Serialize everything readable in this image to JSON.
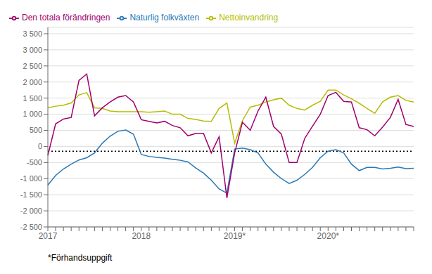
{
  "chart_data": {
    "type": "line",
    "note": "*Förhandsuppgift",
    "categories": [
      "2017",
      null,
      null,
      null,
      null,
      null,
      null,
      null,
      null,
      null,
      null,
      null,
      "2018",
      null,
      null,
      null,
      null,
      null,
      null,
      null,
      null,
      null,
      null,
      null,
      "2019*",
      null,
      null,
      null,
      null,
      null,
      null,
      null,
      null,
      null,
      null,
      null,
      "2020*",
      null,
      null,
      null,
      null,
      null,
      null,
      null,
      null,
      null,
      null,
      null
    ],
    "series": [
      {
        "name": "Naturlig folkväxten",
        "color": "#2878b5",
        "values": [
          -1200,
          -900,
          -700,
          -550,
          -420,
          -350,
          -200,
          100,
          320,
          470,
          510,
          380,
          -250,
          -310,
          -340,
          -360,
          -400,
          -430,
          -480,
          -670,
          -830,
          -1050,
          -1320,
          -1450,
          -80,
          -50,
          -100,
          -200,
          -550,
          -800,
          -1000,
          -1150,
          -1050,
          -870,
          -650,
          -350,
          -150,
          -100,
          -200,
          -550,
          -750,
          -650,
          -650,
          -700,
          -680,
          -640,
          -690,
          -680
        ]
      },
      {
        "name": "Nettoinvandring",
        "color": "#b5bd00",
        "values": [
          1200,
          1250,
          1280,
          1350,
          1600,
          1670,
          1200,
          1180,
          1100,
          1080,
          1080,
          1080,
          1080,
          1060,
          1080,
          1100,
          1000,
          1000,
          870,
          840,
          790,
          780,
          1180,
          1350,
          100,
          800,
          1220,
          1280,
          1380,
          1450,
          1500,
          1280,
          1180,
          1130,
          1280,
          1400,
          1750,
          1750,
          1600,
          1480,
          1340,
          1180,
          1030,
          1380,
          1530,
          1580,
          1430,
          1380
        ]
      },
      {
        "name": "Den totala förändringen",
        "color": "#a0006e",
        "values": [
          -280,
          700,
          850,
          900,
          2050,
          2250,
          950,
          1200,
          1380,
          1530,
          1580,
          1380,
          830,
          780,
          730,
          780,
          650,
          580,
          330,
          400,
          400,
          -200,
          300,
          -1600,
          -200,
          750,
          500,
          1100,
          1530,
          620,
          380,
          -500,
          -500,
          250,
          630,
          1000,
          1580,
          1680,
          1400,
          1380,
          580,
          520,
          330,
          600,
          900,
          1460,
          680,
          620
        ]
      }
    ],
    "reference_line": -150,
    "ylim": [
      -2500,
      3700
    ],
    "yticks": [
      {
        "value": -2500,
        "label": "-2 500"
      },
      {
        "value": -2000,
        "label": "-2 000"
      },
      {
        "value": -1500,
        "label": "-1 500"
      },
      {
        "value": -1000,
        "label": "-1 000"
      },
      -500,
      0,
      500,
      {
        "value": 1000,
        "label": "1 000"
      },
      {
        "value": 1500,
        "label": "1 500"
      },
      {
        "value": 2000,
        "label": "2 000"
      },
      {
        "value": 2500,
        "label": "2 500"
      },
      {
        "value": 3000,
        "label": "3 000"
      },
      {
        "value": 3500,
        "label": "3 500"
      }
    ],
    "grid": "y",
    "legend": "top"
  }
}
